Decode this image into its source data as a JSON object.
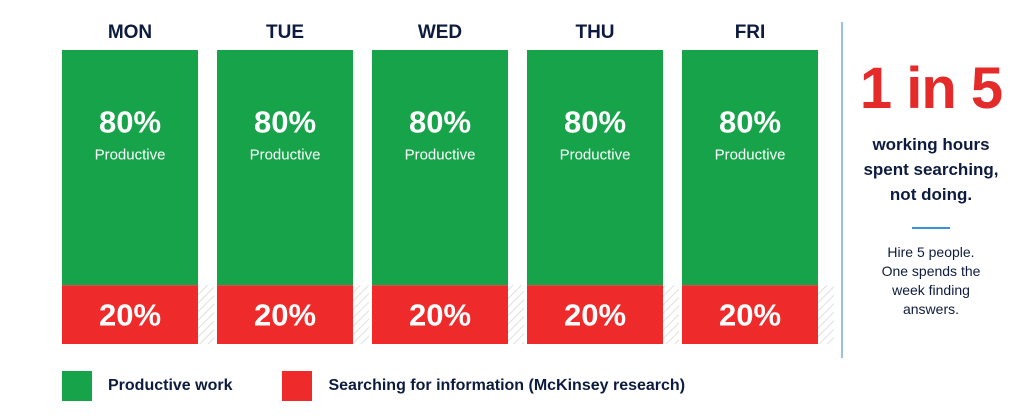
{
  "colors": {
    "productive": "#16a34a",
    "searching": "#ee2a2a",
    "text_dark": "#0d1b3e",
    "accent_blue": "#3d8fe0"
  },
  "chart_data": {
    "type": "bar",
    "stacked": true,
    "categories": [
      "MON",
      "TUE",
      "WED",
      "THU",
      "FRI"
    ],
    "series": [
      {
        "name": "Productive",
        "values": [
          80,
          80,
          80,
          80,
          80
        ]
      },
      {
        "name": "Searching",
        "values": [
          20,
          20,
          20,
          20,
          20
        ]
      }
    ],
    "ylim": [
      0,
      100
    ],
    "value_suffix": "%",
    "segment_caption": "Productive",
    "grid": false,
    "legend_position": "bottom-left"
  },
  "legend": {
    "items": [
      {
        "label": "Productive work"
      },
      {
        "label": "Searching for information (McKinsey research)"
      }
    ]
  },
  "callout": {
    "headline": "1 in 5",
    "subline_1": "working hours",
    "subline_2": "spent searching,",
    "subline_3": "not doing.",
    "note_1": "Hire 5 people.",
    "note_2": "One spends the",
    "note_3": "week finding",
    "note_4": "answers."
  }
}
